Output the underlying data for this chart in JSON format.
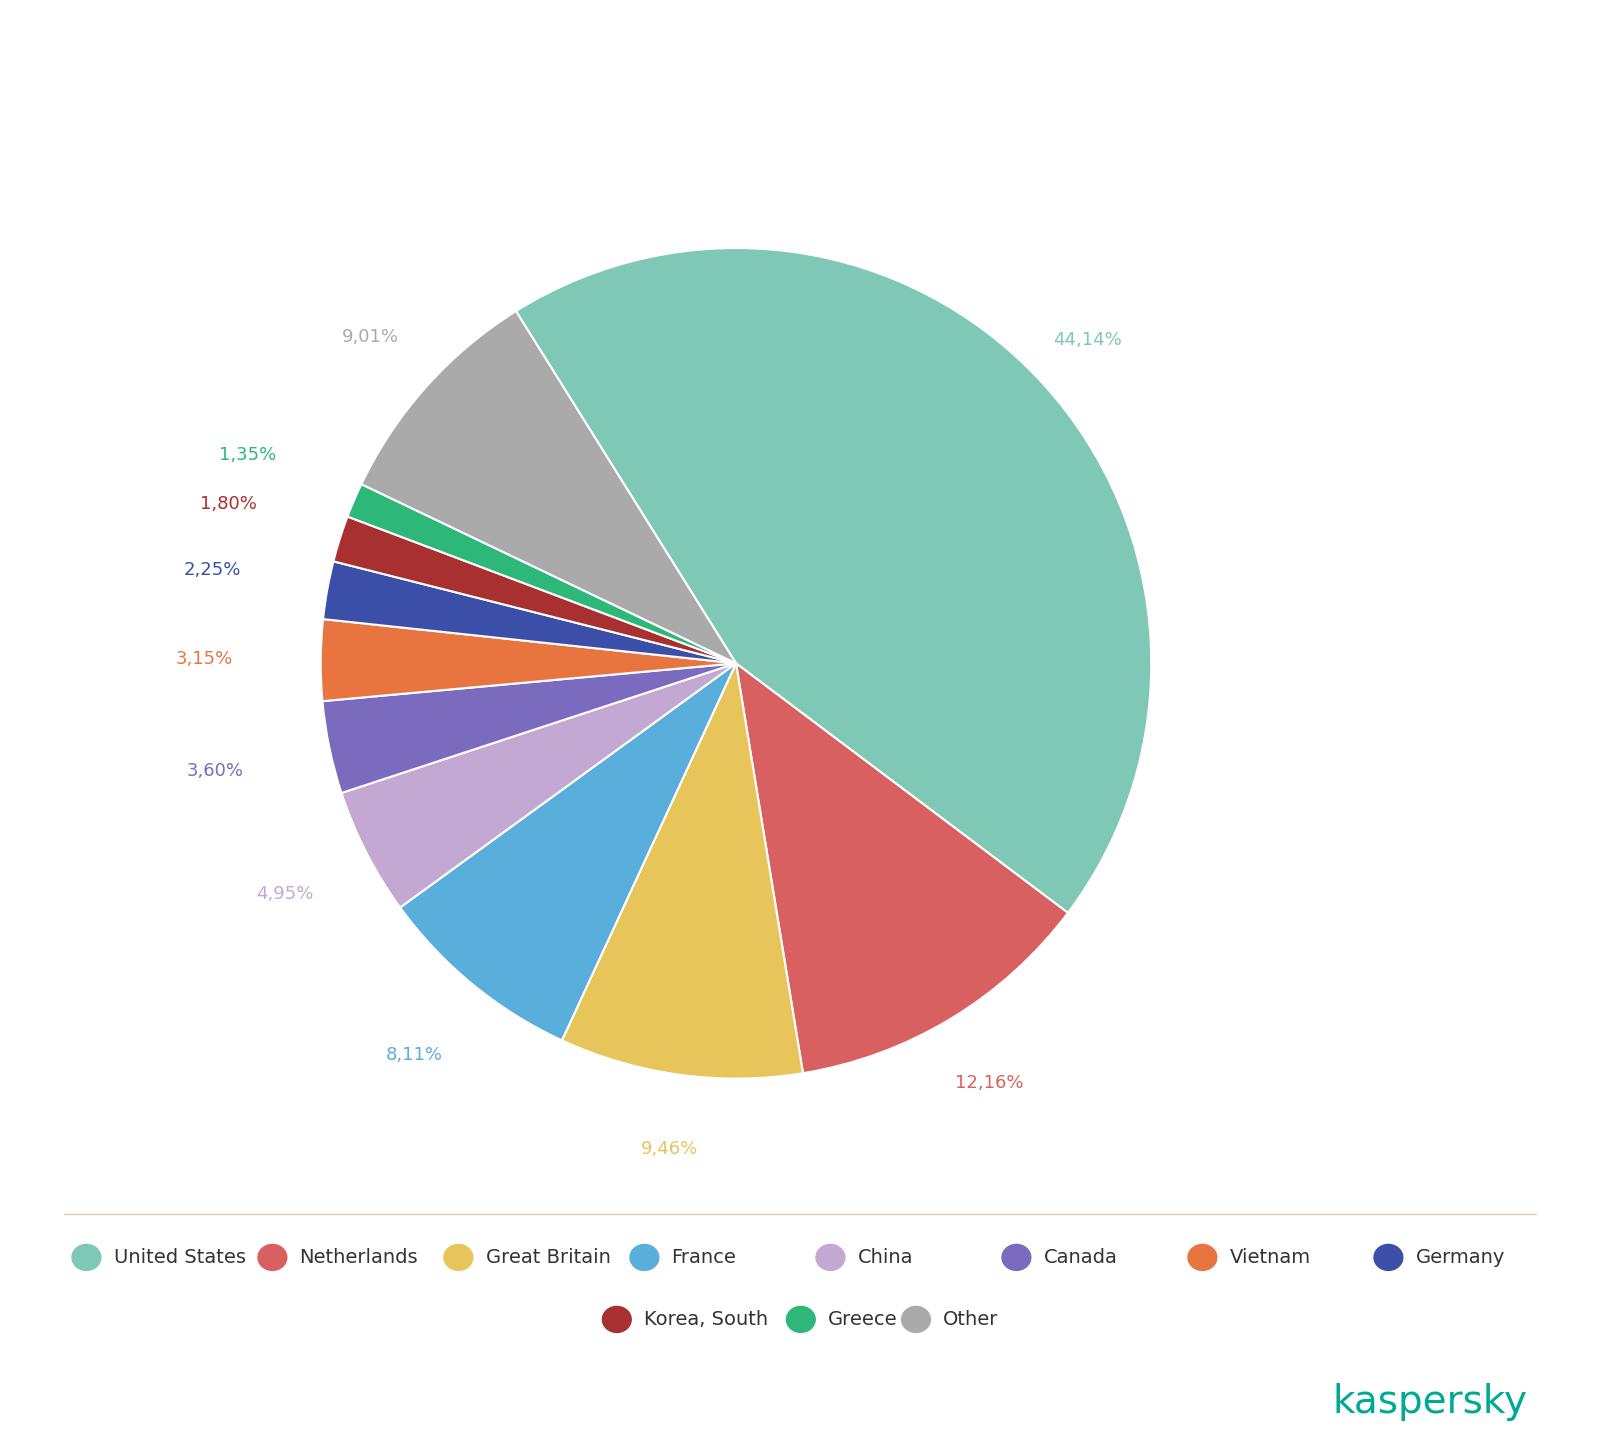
{
  "labels": [
    "United States",
    "Netherlands",
    "Great Britain",
    "France",
    "China",
    "Canada",
    "Vietnam",
    "Germany",
    "Korea, South",
    "Greece",
    "Other"
  ],
  "values": [
    44.14,
    12.16,
    9.46,
    8.11,
    4.95,
    3.6,
    3.15,
    2.25,
    1.8,
    1.35,
    9.01
  ],
  "colors": [
    "#7ec8b5",
    "#d96060",
    "#e8c55a",
    "#5aaedb",
    "#c4a8d4",
    "#7b6bbf",
    "#e87540",
    "#3b4fa8",
    "#a83030",
    "#2db87a",
    "#aaaaaa"
  ],
  "pct_labels": [
    "44,14%",
    "12,16%",
    "9,46%",
    "8,11%",
    "4,95%",
    "3,60%",
    "3,15%",
    "2,25%",
    "1,80%",
    "1,35%",
    "9,01%"
  ],
  "pct_colors": [
    "#7ec8b5",
    "#d96060",
    "#e8c55a",
    "#5aaedb",
    "#c4a8d4",
    "#7b6bbf",
    "#e87540",
    "#3b4fa8",
    "#a83030",
    "#2db87a",
    "#aaaaaa"
  ],
  "background_color": "#ffffff",
  "kaspersky_color": "#00a896",
  "legend_fontsize": 14,
  "label_fontsize": 13,
  "divider_color": "#ddd0b0",
  "startangle": 122
}
